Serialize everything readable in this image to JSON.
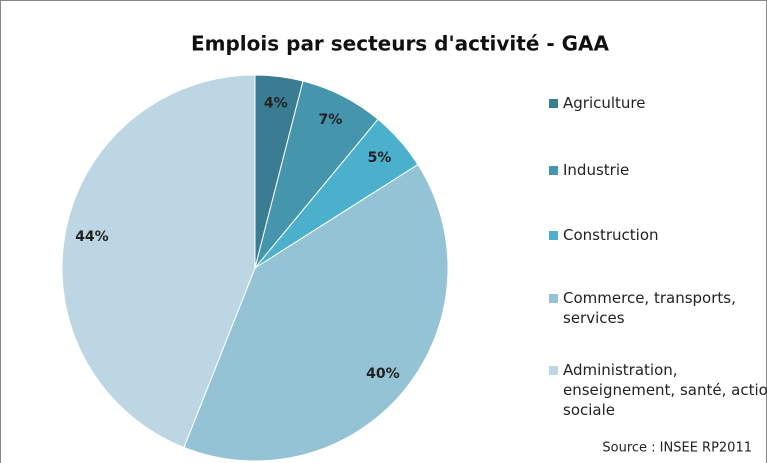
{
  "chart_data": {
    "type": "pie",
    "title": "Emplois par secteurs d'activité - GAA",
    "categories": [
      "Agriculture",
      "Industrie",
      "Construction",
      "Commerce, transports, services",
      "Administration, enseignement, santé, action sociale"
    ],
    "values": [
      4,
      7,
      5,
      40,
      44
    ],
    "value_labels": [
      "4%",
      "7%",
      "5%",
      "40%",
      "44%"
    ],
    "colors": [
      "#3a7d93",
      "#4595ad",
      "#4bb0cb",
      "#93c3d5",
      "#bcd7e3"
    ],
    "legend": "right",
    "annotation": "Source : INSEE RP2011"
  }
}
